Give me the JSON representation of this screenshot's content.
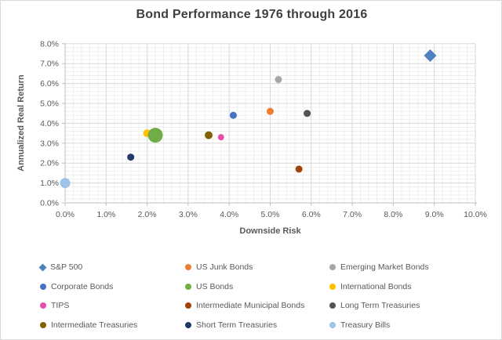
{
  "window": {
    "background": "#FFFFFF",
    "border_color": "#D9D9D9"
  },
  "styles": {
    "title_color": "#3F3F3F",
    "axis_title_color": "#595959",
    "tick_label_color": "#595959",
    "legend_text_color": "#595959",
    "major_grid_color": "#D9D9D9",
    "minor_grid_color": "#EFEFEF",
    "axis_line_color": "#BFBFBF"
  },
  "chart_data": {
    "type": "scatter",
    "title": "Bond Performance 1976 through 2016",
    "xlabel": "Downside Risk",
    "ylabel": "Annualized Real Return",
    "xlim": [
      0,
      10
    ],
    "ylim": [
      0,
      8
    ],
    "x_tick_labels": [
      "0.0%",
      "1.0%",
      "2.0%",
      "3.0%",
      "4.0%",
      "5.0%",
      "6.0%",
      "7.0%",
      "8.0%",
      "9.0%",
      "10.0%"
    ],
    "y_tick_labels": [
      "0.0%",
      "1.0%",
      "2.0%",
      "3.0%",
      "4.0%",
      "5.0%",
      "6.0%",
      "7.0%",
      "8.0%"
    ],
    "grid": {
      "major": true,
      "minor": true,
      "minor_step": 0.2
    },
    "legend_position": "bottom",
    "x_units": "percent downside risk",
    "y_units": "percent annualized real return",
    "series": [
      {
        "name": "S&P 500",
        "x": 8.9,
        "y": 7.4,
        "color": "#4E81BD",
        "marker": "diamond",
        "size": 16
      },
      {
        "name": "US Junk Bonds",
        "x": 5.0,
        "y": 4.6,
        "color": "#ED7D31",
        "marker": "circle",
        "size": 9
      },
      {
        "name": "Emerging Market Bonds",
        "x": 5.2,
        "y": 6.2,
        "color": "#A6A6A6",
        "marker": "circle",
        "size": 9
      },
      {
        "name": "Corporate Bonds",
        "x": 4.1,
        "y": 4.4,
        "color": "#4472C4",
        "marker": "circle",
        "size": 9
      },
      {
        "name": "US Bonds",
        "x": 2.2,
        "y": 3.4,
        "color": "#70AD47",
        "marker": "circle",
        "size": 19
      },
      {
        "name": "International Bonds",
        "x": 2.0,
        "y": 3.5,
        "color": "#FFC000",
        "marker": "circle",
        "size": 10
      },
      {
        "name": "TIPS",
        "x": 3.8,
        "y": 3.3,
        "color": "#E94DAC",
        "marker": "circle",
        "size": 8
      },
      {
        "name": "Intermediate Municipal Bonds",
        "x": 5.7,
        "y": 1.7,
        "color": "#A0440B",
        "marker": "circle",
        "size": 9
      },
      {
        "name": "Long Term Treasuries",
        "x": 5.9,
        "y": 4.5,
        "color": "#545454",
        "marker": "circle",
        "size": 9
      },
      {
        "name": "Intermediate Treasuries",
        "x": 3.5,
        "y": 3.4,
        "color": "#806000",
        "marker": "circle",
        "size": 10
      },
      {
        "name": "Short Term Treasuries",
        "x": 1.6,
        "y": 2.3,
        "color": "#24396B",
        "marker": "circle",
        "size": 9
      },
      {
        "name": "Treasury Bills",
        "x": 0.0,
        "y": 1.0,
        "color": "#9DC3E6",
        "marker": "circle",
        "size": 13
      }
    ]
  }
}
